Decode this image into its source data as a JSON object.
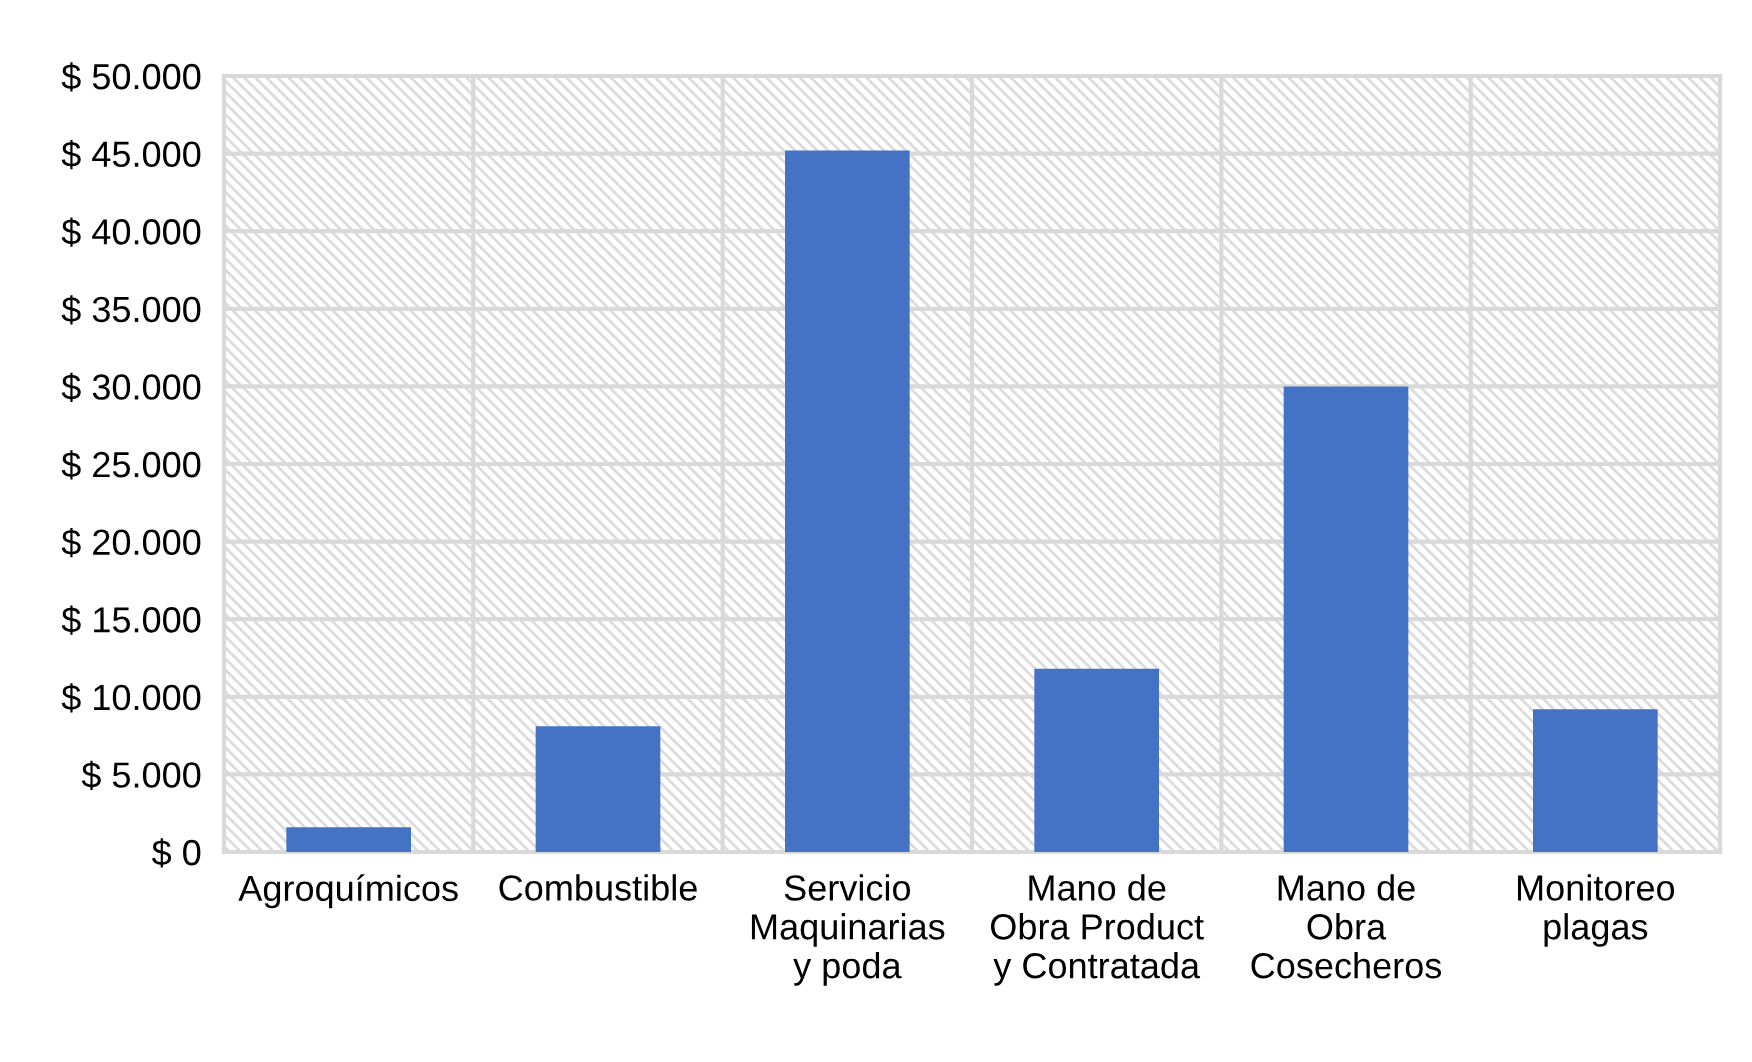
{
  "chart_data": {
    "type": "bar",
    "categories": [
      "Agroquímicos",
      "Combustible",
      "Servicio\nMaquinarias\ny poda",
      "Mano de\nObra Product\ny Contratada",
      "Mano de\nObra\nCosecheros",
      "Monitoreo\nplagas"
    ],
    "values": [
      1600,
      8100,
      45200,
      11800,
      30000,
      9200
    ],
    "color": "#4472c4",
    "ylim": [
      0,
      50000
    ],
    "yticks": [
      {
        "value": 0,
        "label": "$ 0"
      },
      {
        "value": 5000,
        "label": "$ 5.000"
      },
      {
        "value": 10000,
        "label": "$ 10.000"
      },
      {
        "value": 15000,
        "label": "$ 15.000"
      },
      {
        "value": 20000,
        "label": "$ 20.000"
      },
      {
        "value": 25000,
        "label": "$ 25.000"
      },
      {
        "value": 30000,
        "label": "$ 30.000"
      },
      {
        "value": 35000,
        "label": "$ 35.000"
      },
      {
        "value": 40000,
        "label": "$ 40.000"
      },
      {
        "value": 45000,
        "label": "$ 45.000"
      },
      {
        "value": 50000,
        "label": "$ 50.000"
      }
    ],
    "grid": true
  }
}
